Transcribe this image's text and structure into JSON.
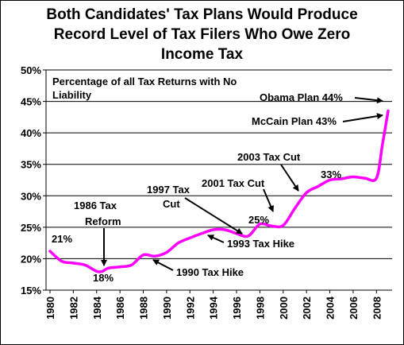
{
  "title_lines": [
    "Both Candidates' Tax Plans Would Produce",
    "Record Level of Tax Filers Who Owe Zero",
    "Income Tax"
  ],
  "chart_data": {
    "type": "line",
    "title": "Both Candidates' Tax Plans Would Produce Record Level of Tax Filers Who Owe Zero Income Tax",
    "subtitle_lines": [
      "Percentage of all Tax Returns with No",
      "Liability"
    ],
    "xlabel": "",
    "ylabel": "",
    "xlim": [
      1980,
      2009
    ],
    "ylim": [
      15,
      50
    ],
    "y_ticks": [
      "15%",
      "20%",
      "25%",
      "30%",
      "35%",
      "40%",
      "45%",
      "50%"
    ],
    "x_ticks": [
      "1980",
      "1982",
      "1984",
      "1986",
      "1988",
      "1990",
      "1992",
      "1994",
      "1996",
      "1998",
      "2000",
      "2002",
      "2004",
      "2006",
      "2008"
    ],
    "grid": "horizontal",
    "line_color": "#ff00ff",
    "series": [
      {
        "x": [
          1980,
          1981,
          1982,
          1983,
          1984,
          1984.5,
          1985,
          1986,
          1987,
          1988,
          1989,
          1990,
          1991,
          1992,
          1993,
          1994,
          1995,
          1996,
          1997,
          1998,
          1999,
          2000,
          2001,
          2002,
          2003,
          2004,
          2005,
          2006,
          2007,
          2008,
          2008.5,
          2009
        ],
        "values": [
          21.2,
          19.6,
          19.3,
          19.0,
          18.0,
          18.0,
          18.5,
          18.7,
          19.0,
          20.6,
          20.4,
          21.0,
          22.5,
          23.3,
          24.0,
          24.6,
          24.6,
          24.0,
          23.6,
          25.5,
          25.2,
          25.3,
          28.0,
          30.5,
          31.5,
          32.5,
          32.7,
          33.0,
          32.8,
          32.8,
          38.0,
          43.5
        ]
      }
    ],
    "annotations": [
      {
        "id": "v21",
        "text": "21%"
      },
      {
        "id": "v18",
        "text": "18%"
      },
      {
        "id": "reform1",
        "text": "1986 Tax"
      },
      {
        "id": "reform2",
        "text": "Reform"
      },
      {
        "id": "hike1990",
        "text": "1990 Tax  Hike"
      },
      {
        "id": "cut1997a",
        "text": "1997 Tax"
      },
      {
        "id": "cut1997b",
        "text": "Cut"
      },
      {
        "id": "hike1993",
        "text": "1993 Tax  Hike"
      },
      {
        "id": "cut2001",
        "text": "2001 Tax Cut"
      },
      {
        "id": "v25",
        "text": "25%"
      },
      {
        "id": "cut2003",
        "text": "2003 Tax Cut"
      },
      {
        "id": "v33",
        "text": "33%"
      },
      {
        "id": "obama",
        "text": "Obama Plan 44%"
      },
      {
        "id": "mccain",
        "text": "McCain Plan 43%"
      }
    ]
  }
}
